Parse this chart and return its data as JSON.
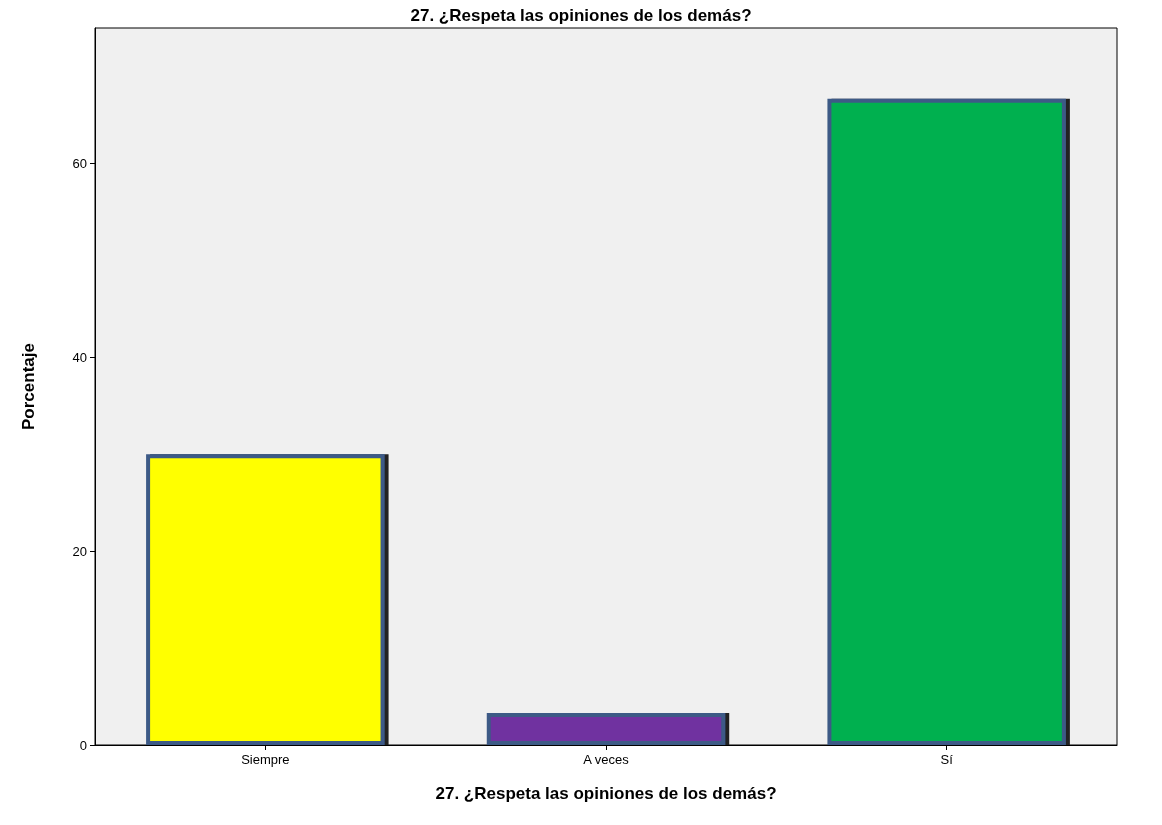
{
  "chart_data": {
    "type": "bar",
    "title": "27. ¿Respeta las opiniones de los demás?",
    "xlabel": "27. ¿Respeta las opiniones de los demás?",
    "ylabel": "Porcentaje",
    "categories": [
      "Siempre",
      "A veces",
      "Sí"
    ],
    "values": [
      30.0,
      3.3,
      66.7
    ],
    "colors": [
      "#ffff00",
      "#7030a0",
      "#00b050"
    ],
    "ylim": [
      0,
      74
    ],
    "yticks": [
      0,
      20,
      40,
      60
    ],
    "grid": false
  }
}
